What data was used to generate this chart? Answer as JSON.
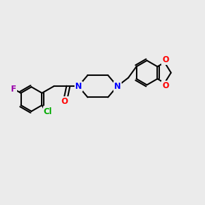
{
  "bg_color": "#ebebeb",
  "bond_color": "#000000",
  "bond_width": 1.5,
  "atom_colors": {
    "F": "#9900AA",
    "Cl": "#00AA00",
    "N": "#0000FF",
    "O": "#FF0000",
    "C": "#000000"
  },
  "font_size": 8.5,
  "fig_size": [
    3.0,
    3.0
  ],
  "dpi": 100,
  "xlim": [
    0,
    12
  ],
  "ylim": [
    0,
    10
  ]
}
